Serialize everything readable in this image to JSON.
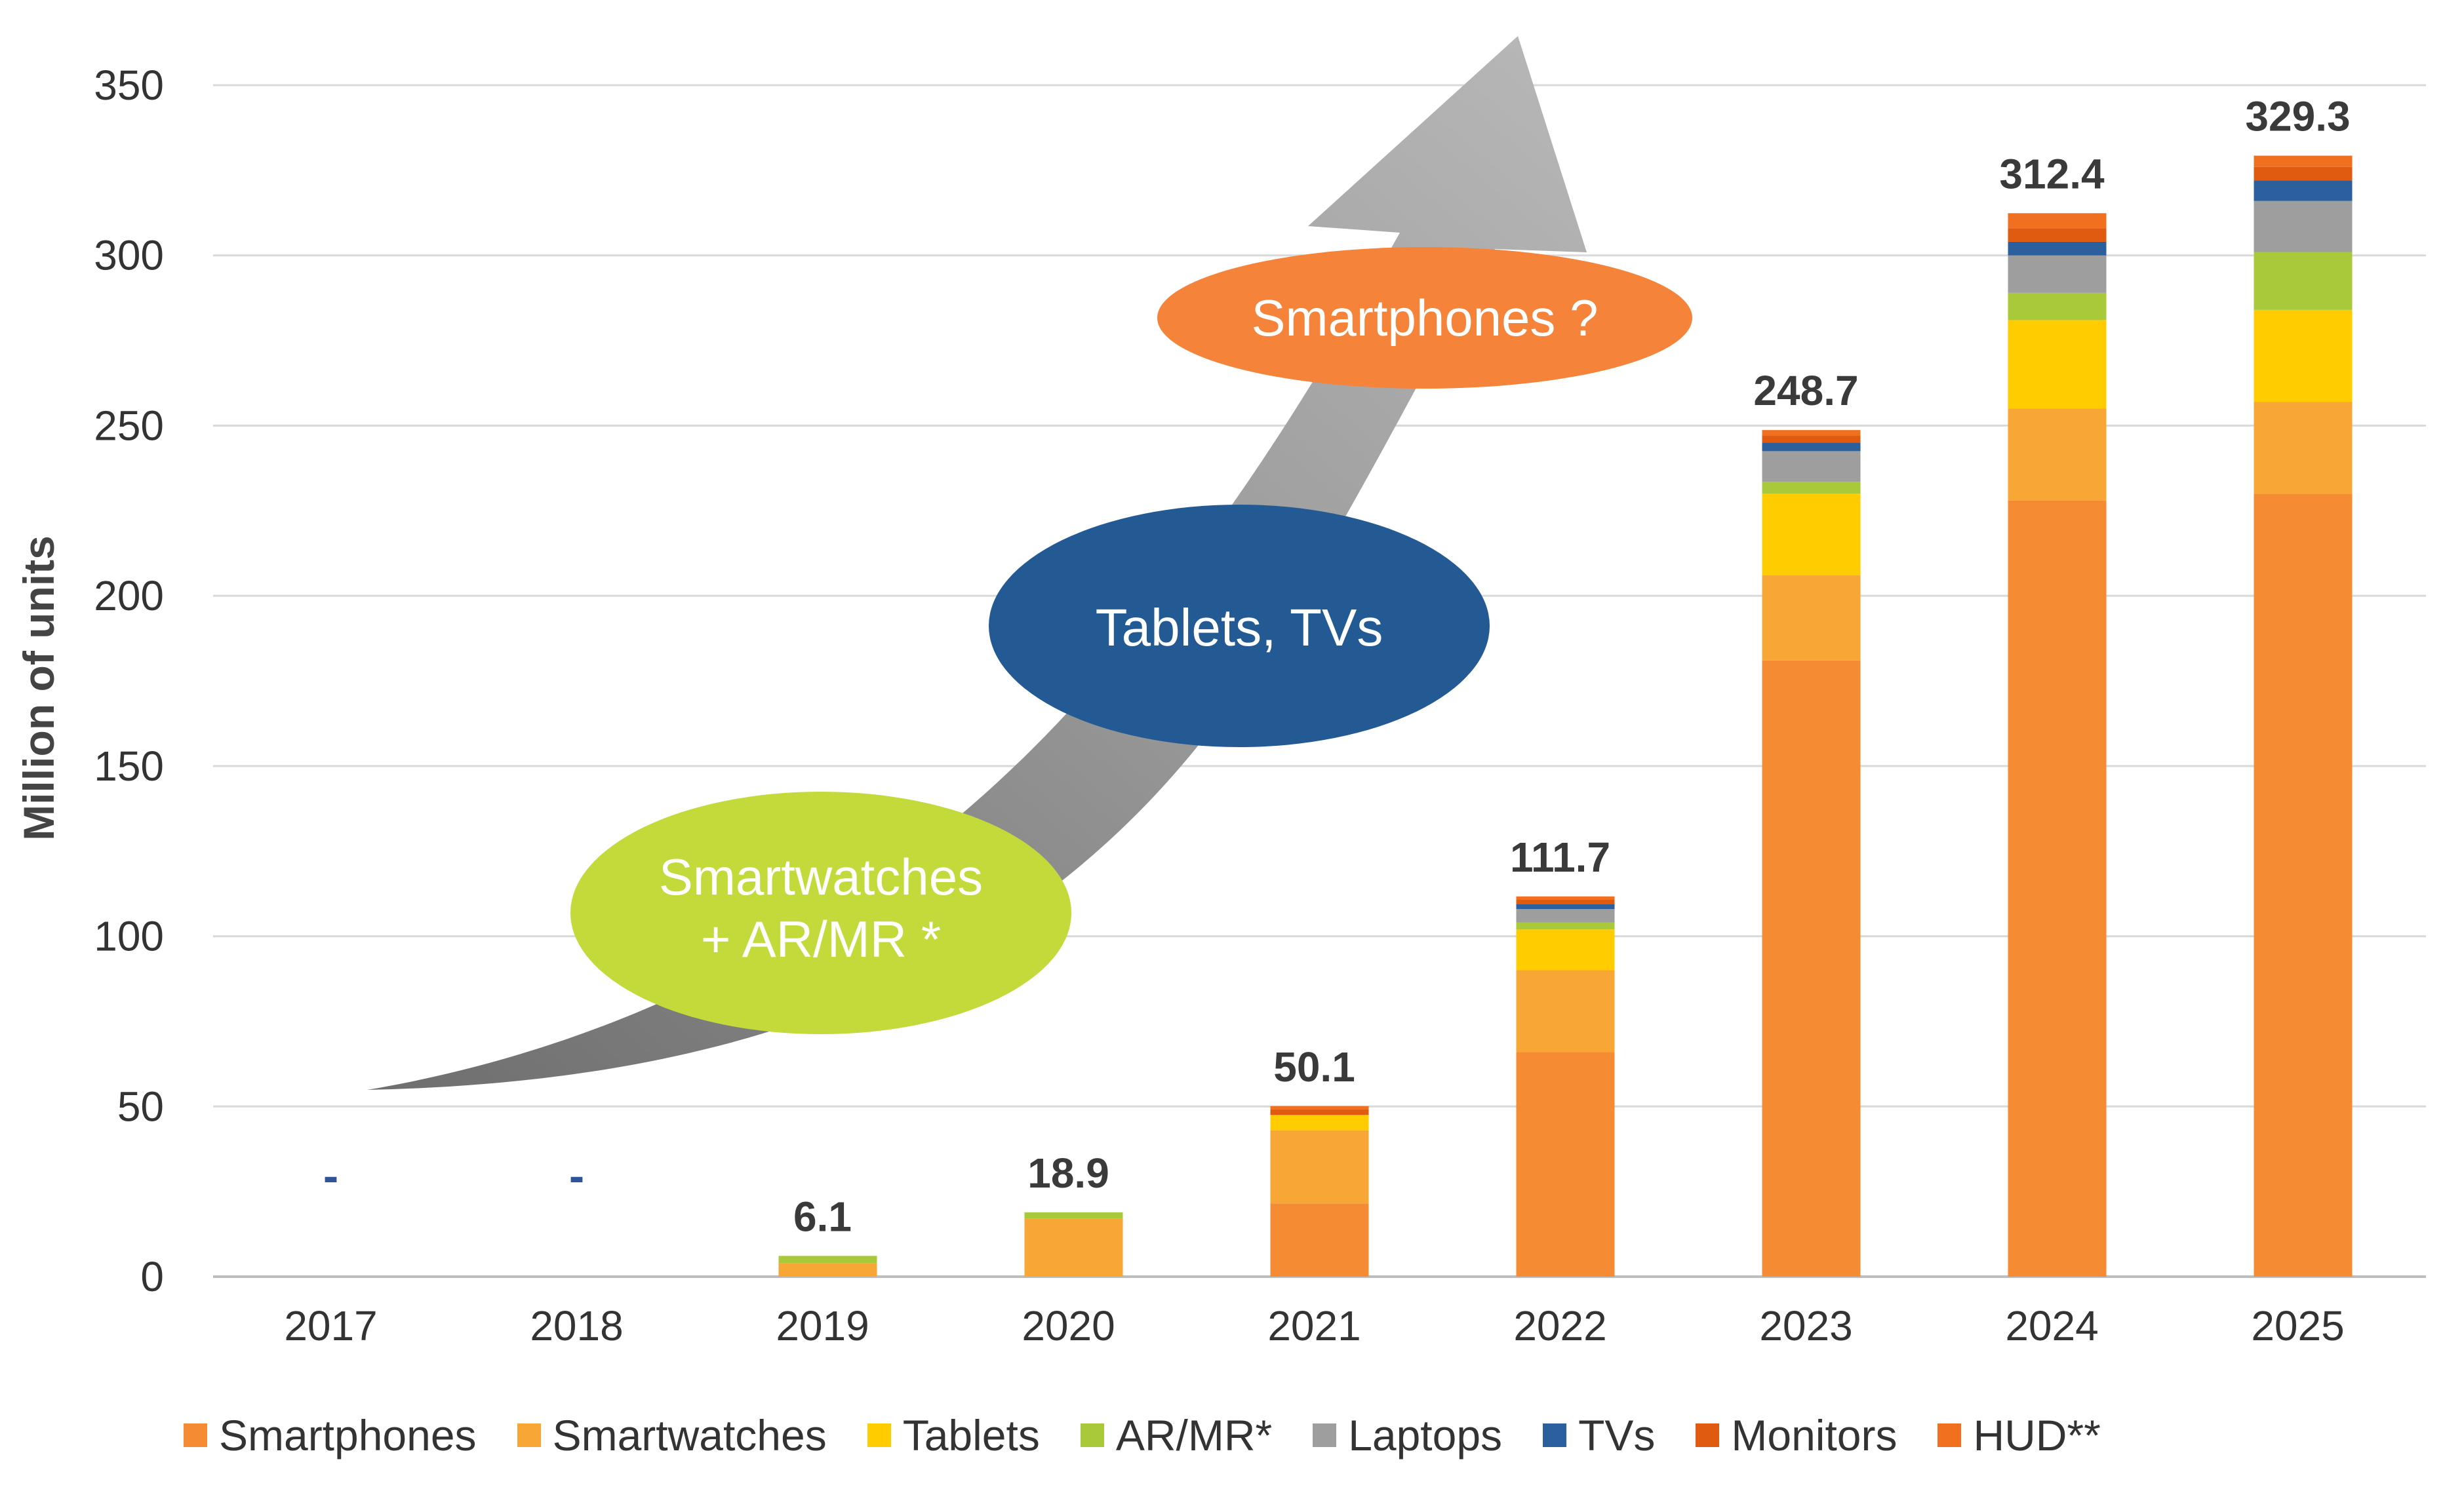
{
  "chart_data": {
    "type": "bar",
    "stacked": true,
    "title": "",
    "xlabel": "",
    "ylabel": "Million of units",
    "ylim": [
      0,
      350
    ],
    "yticks": [
      0,
      50,
      100,
      150,
      200,
      250,
      300,
      350
    ],
    "grid": true,
    "legend_position": "bottom",
    "categories": [
      "2017",
      "2018",
      "2019",
      "2020",
      "2021",
      "2022",
      "2023",
      "2024",
      "2025"
    ],
    "series": [
      {
        "name": "Smartphones",
        "color": "#f58b32",
        "values": [
          0,
          0,
          0,
          0,
          21.5,
          66,
          181,
          228,
          230
        ]
      },
      {
        "name": "Smartwatches",
        "color": "#f8a636",
        "values": [
          0,
          0,
          4,
          17,
          21.5,
          24,
          25,
          27,
          27
        ]
      },
      {
        "name": "Tablets",
        "color": "#ffcc00",
        "values": [
          0,
          0,
          0,
          0,
          4.5,
          12,
          24,
          26,
          27
        ]
      },
      {
        "name": "AR/MR*",
        "color": "#a8c93a",
        "values": [
          0,
          0,
          2.1,
          1.9,
          0,
          2,
          3.5,
          8,
          17
        ]
      },
      {
        "name": "Laptops",
        "color": "#9e9e9e",
        "values": [
          0,
          0,
          0,
          0,
          0,
          4,
          9,
          11,
          15
        ]
      },
      {
        "name": "TVs",
        "color": "#2c5f9e",
        "values": [
          0,
          0,
          0,
          0,
          0,
          1.5,
          2.5,
          4,
          6
        ]
      },
      {
        "name": "Monitors",
        "color": "#e05a10",
        "values": [
          0,
          0,
          0,
          0,
          1.6,
          1.2,
          2,
          4,
          4
        ]
      },
      {
        "name": "HUD**",
        "color": "#f07020",
        "values": [
          0,
          0,
          0,
          0,
          1,
          1,
          1.7,
          4.4,
          3.3
        ]
      }
    ],
    "totals": [
      "-",
      "-",
      "6.1",
      "18.9",
      "50.1",
      "111.7",
      "248.7",
      "312.4",
      "329.3"
    ],
    "annotations": [
      {
        "text_lines": [
          "Smartwatches",
          "+ AR/MR *"
        ],
        "color": "#c4d93a"
      },
      {
        "text_lines": [
          "Tablets, TVs"
        ],
        "color": "#245a93"
      },
      {
        "text_lines": [
          "Smartphones ?"
        ],
        "color": "#f5843a"
      }
    ]
  }
}
